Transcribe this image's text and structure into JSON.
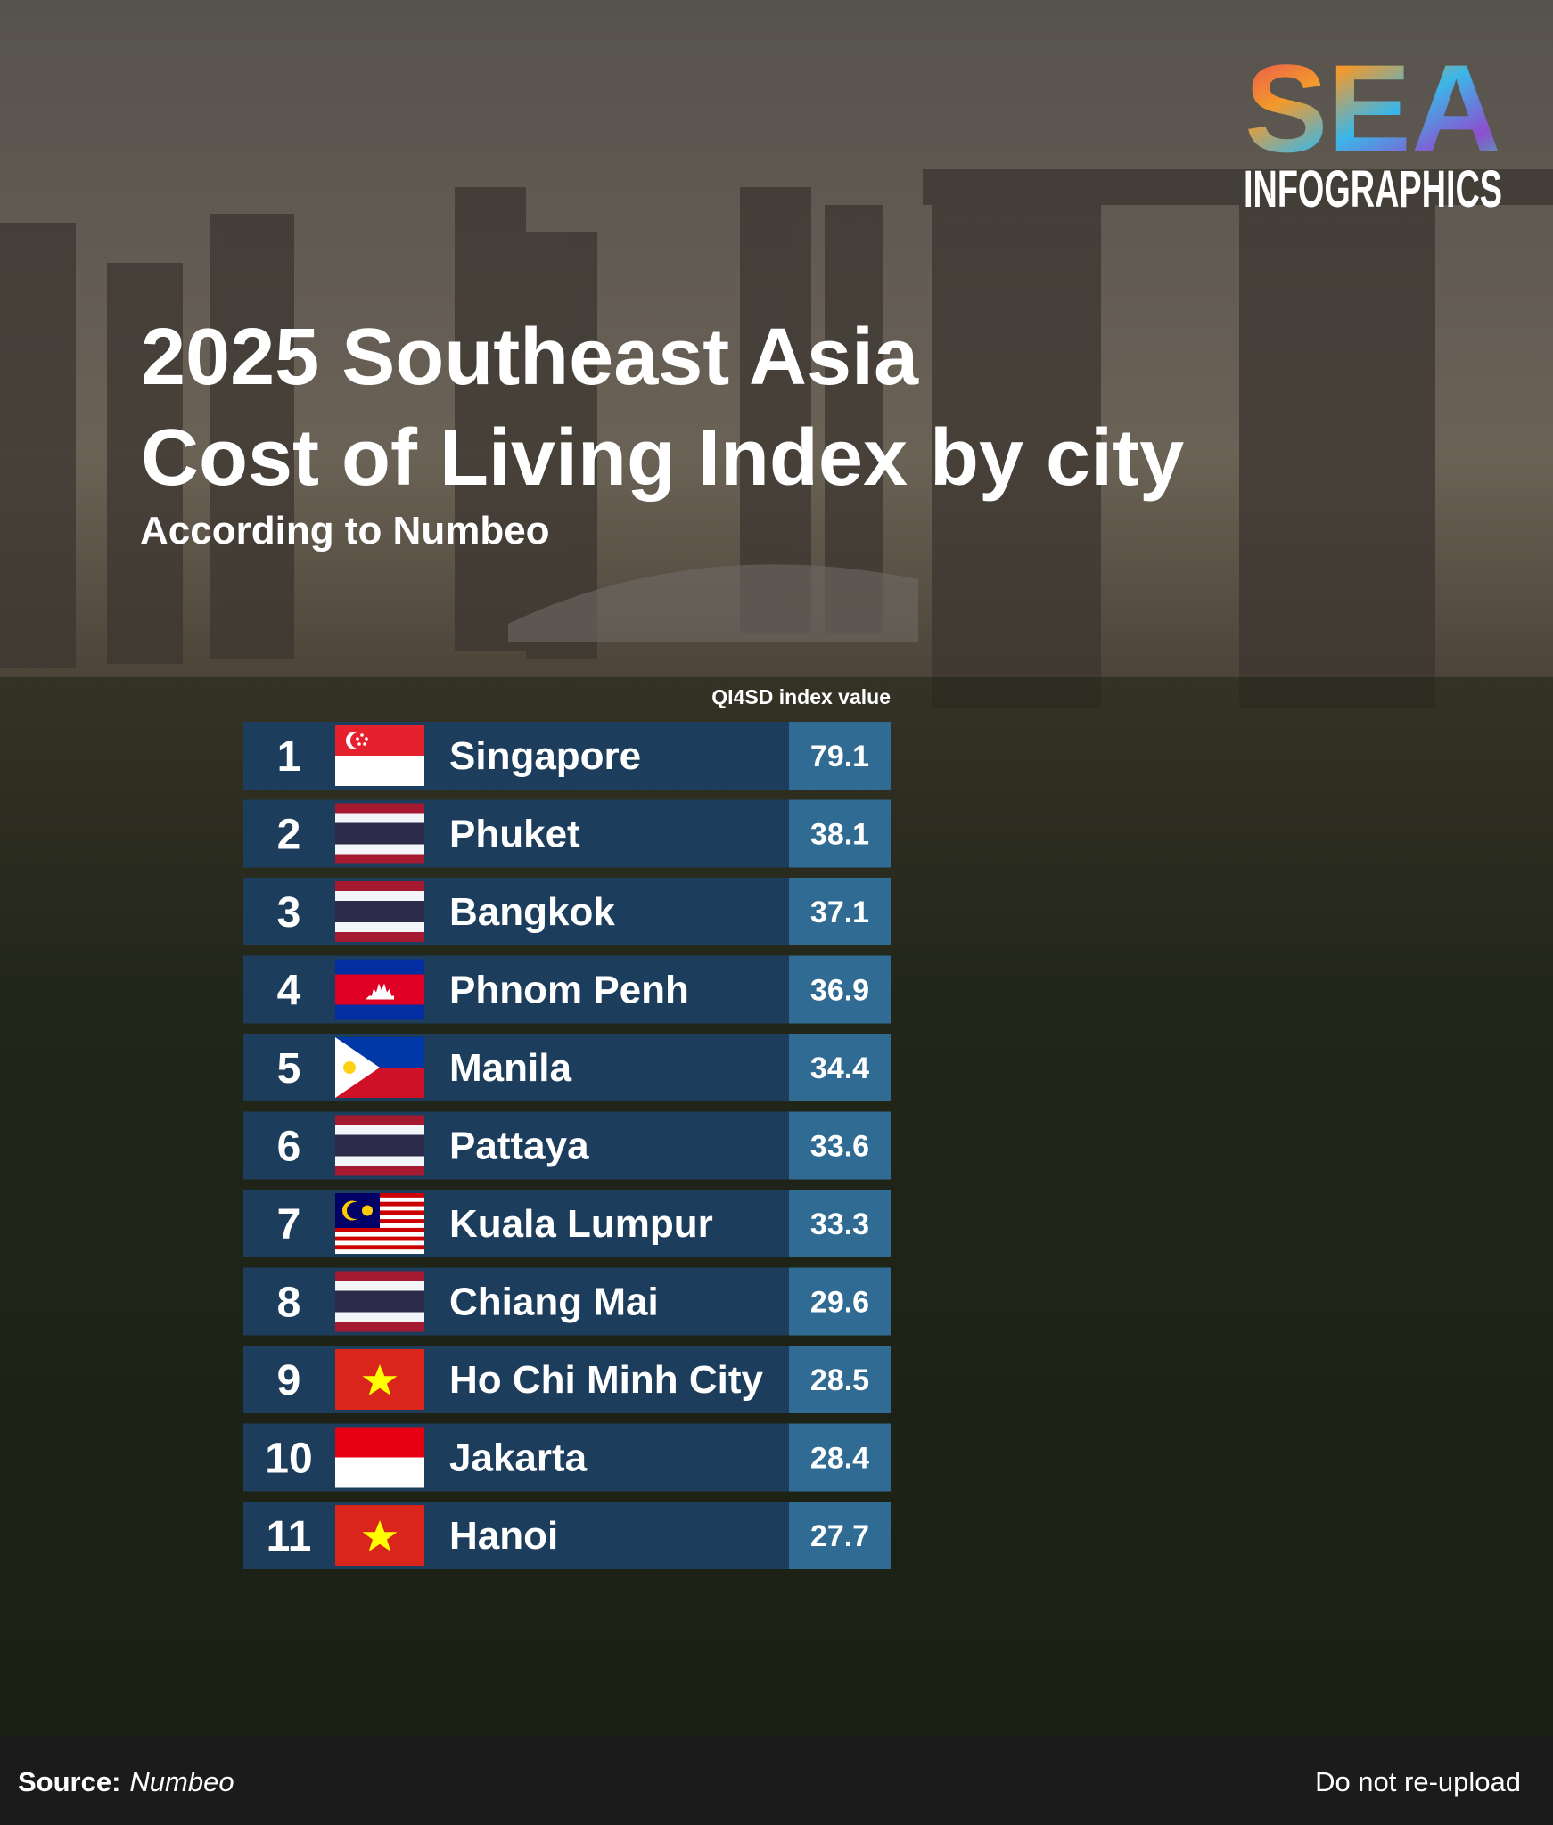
{
  "logo": {
    "mark": "SEA",
    "word": "INFOGRAPHICS"
  },
  "header": {
    "title_line_1": "2025 Southeast Asia",
    "title_line_2": "Cost of Living Index by city",
    "subtitle": "According to Numbeo"
  },
  "table": {
    "value_header": "QI4SD index value",
    "rows": [
      {
        "rank": 1,
        "city": "Singapore",
        "value": 79.1
      },
      {
        "rank": 2,
        "city": "Phuket",
        "value": 38.1
      },
      {
        "rank": 3,
        "city": "Bangkok",
        "value": 37.1
      },
      {
        "rank": 4,
        "city": "Phnom Penh",
        "value": 36.9
      },
      {
        "rank": 5,
        "city": "Manila",
        "value": 34.4
      },
      {
        "rank": 6,
        "city": "Pattaya",
        "value": 33.6
      },
      {
        "rank": 7,
        "city": "Kuala Lumpur",
        "value": 33.3
      },
      {
        "rank": 8,
        "city": "Chiang Mai",
        "value": 29.6
      },
      {
        "rank": 9,
        "city": "Ho Chi Minh City",
        "value": 28.5
      },
      {
        "rank": 10,
        "city": "Jakarta",
        "value": 28.4
      },
      {
        "rank": 11,
        "city": "Hanoi",
        "value": 27.7
      }
    ]
  },
  "footer": {
    "source_label": "Source:",
    "source": "Numbeo",
    "notice": "Do not re-upload"
  }
}
